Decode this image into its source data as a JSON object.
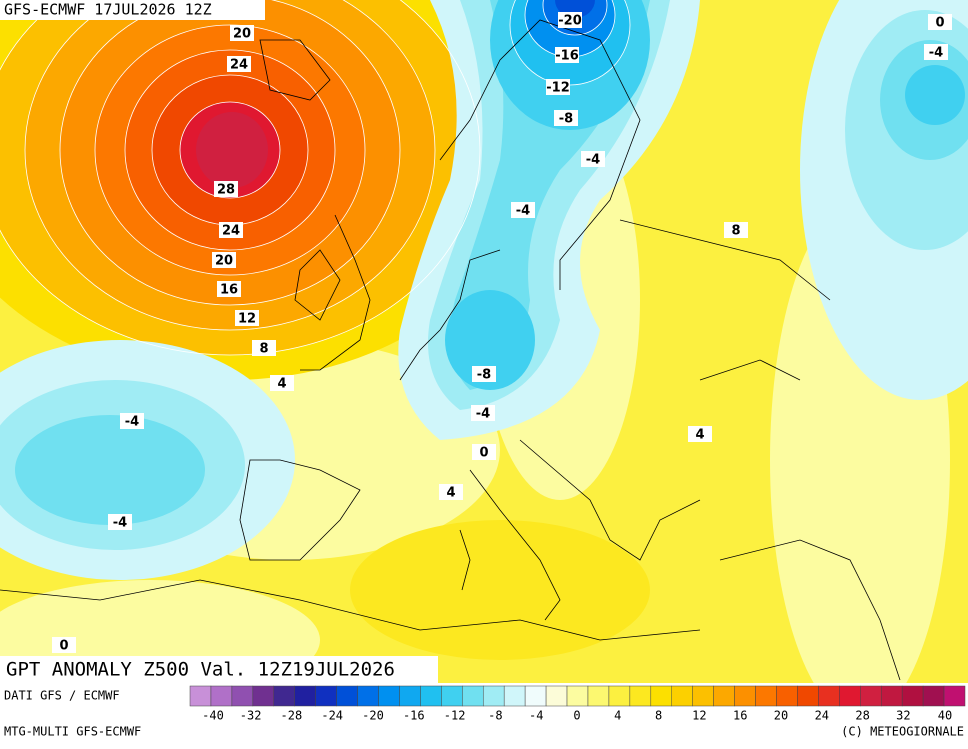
{
  "header": {
    "run": "GFS-ECMWF 17JUL2026 12Z"
  },
  "map": {
    "title": "GPT ANOMALY Z500 Val. 12Z19JUL2026",
    "contour_labels": [
      20,
      24,
      28,
      24,
      20,
      16,
      12,
      8,
      4,
      -4,
      -4,
      -20,
      -16,
      -12,
      -8,
      -4,
      -4,
      -8,
      -4,
      0,
      4,
      8,
      4,
      0,
      -4,
      0
    ]
  },
  "footer": {
    "source": "DATI GFS / ECMWF",
    "model": "MTG-MULTI GFS-ECMWF",
    "copyright": "(C) METEOGIORNALE"
  },
  "colorbar": {
    "ticks": [
      -40,
      -32,
      -28,
      -24,
      -20,
      -16,
      -12,
      -8,
      -4,
      0,
      4,
      8,
      12,
      16,
      20,
      24,
      28,
      32,
      40
    ],
    "colors": [
      "#c890d8",
      "#b070c8",
      "#9050b0",
      "#703090",
      "#402890",
      "#2020a0",
      "#1030c0",
      "#0050d8",
      "#0070e8",
      "#0090f0",
      "#10a8f0",
      "#20c0f0",
      "#40d0f0",
      "#70e0f0",
      "#a0ecf4",
      "#d0f6fa",
      "#f0fcfc",
      "#fcfcd8",
      "#fcfca0",
      "#fcf870",
      "#fcf040",
      "#fce820",
      "#fce000",
      "#fcd000",
      "#fcc000",
      "#fca800",
      "#fc9000",
      "#fc7800",
      "#f86000",
      "#f04800",
      "#e83020",
      "#e01830",
      "#d02040",
      "#c01840",
      "#b01040",
      "#a01050",
      "#c01070"
    ]
  }
}
